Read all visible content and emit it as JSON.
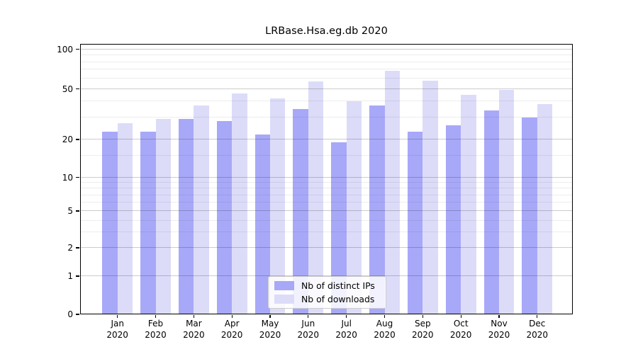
{
  "chart_data": {
    "type": "bar",
    "title": "LRBase.Hsa.eg.db 2020",
    "categories": [
      "Jan 2020",
      "Feb 2020",
      "Mar 2020",
      "Apr 2020",
      "May 2020",
      "Jun 2020",
      "Jul 2020",
      "Aug 2020",
      "Sep 2020",
      "Oct 2020",
      "Nov 2020",
      "Dec 2020"
    ],
    "series": [
      {
        "name": "Nb of distinct IPs",
        "color": "#a8a8f8",
        "values": [
          23,
          23,
          29,
          28,
          22,
          35,
          19,
          37,
          23,
          26,
          34,
          30
        ]
      },
      {
        "name": "Nb of downloads",
        "color": "#dcdcf9",
        "values": [
          27,
          29,
          37,
          46,
          42,
          57,
          40,
          69,
          58,
          45,
          49,
          38
        ]
      }
    ],
    "xlabel": "",
    "ylabel": "",
    "yscale": "log1p",
    "ylim": [
      0,
      110
    ],
    "yticks_major": [
      0,
      1,
      2,
      5,
      10,
      20,
      50,
      100
    ],
    "yticks_minor": [
      3,
      4,
      6,
      7,
      8,
      9,
      15,
      30,
      40,
      60,
      70,
      80,
      90
    ],
    "grid": true,
    "legend": {
      "position": "lower center inside",
      "labels": [
        "Nb of distinct IPs",
        "Nb of downloads"
      ]
    }
  }
}
